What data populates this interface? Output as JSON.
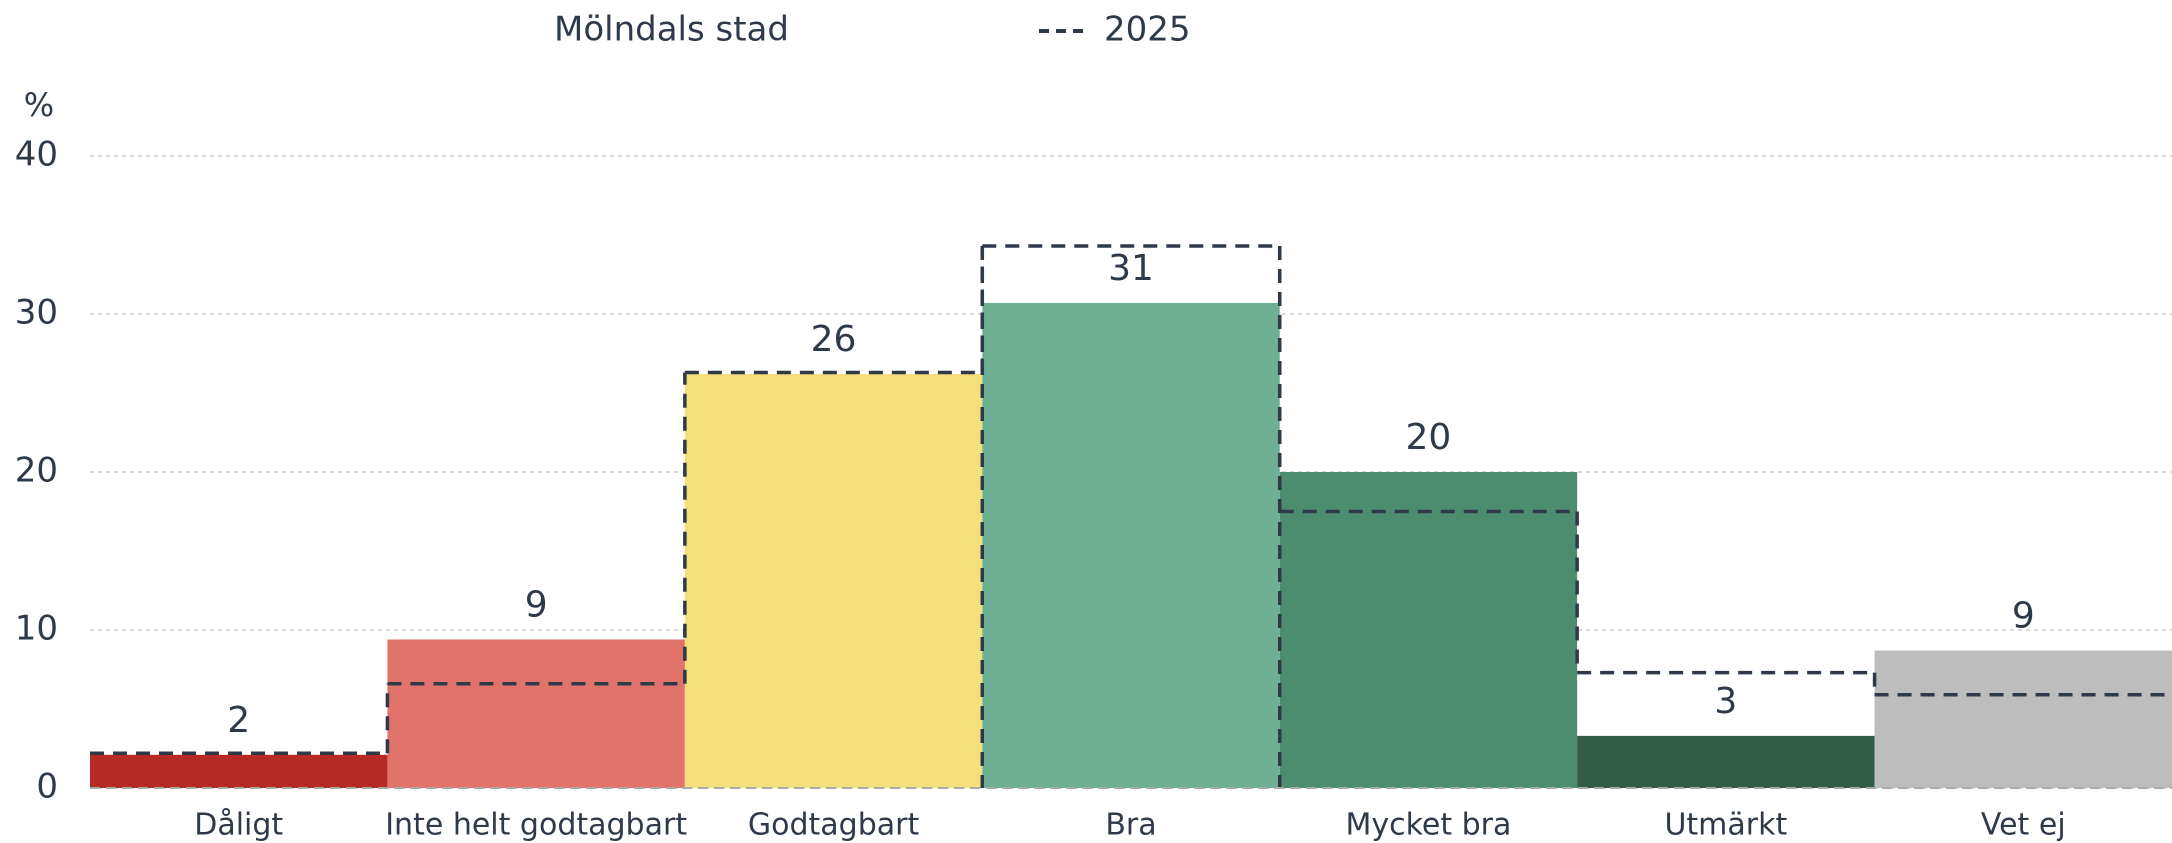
{
  "chart_data": {
    "type": "bar",
    "y_label": "%",
    "categories": [
      "Dåligt",
      "Inte helt godtagbart",
      "Godtagbart",
      "Bra",
      "Mycket bra",
      "Utmärkt",
      "Vet ej"
    ],
    "series": [
      {
        "name": "Mölndals stad",
        "colors": [
          "#b52a25",
          "#e1736b",
          "#f5df7a",
          "#6fb095",
          "#4c8d6f",
          "#325c48",
          "#bdbdbd"
        ],
        "values": [
          2.1,
          9.4,
          26.2,
          30.7,
          20,
          3.3,
          8.7
        ],
        "value_labels": [
          "2",
          "9",
          "26",
          "31",
          "20",
          "3",
          "9"
        ]
      },
      {
        "name": "2025",
        "color": "#2e3a4a",
        "style": "dashed",
        "values": [
          2.2,
          6.6,
          26.3,
          34.3,
          17.5,
          7.3,
          5.9
        ]
      }
    ],
    "ylim": [
      0,
      40
    ],
    "yticks": [
      0,
      10,
      20,
      30,
      40
    ],
    "grid": true
  }
}
